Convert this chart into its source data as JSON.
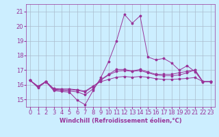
{
  "xlabel": "Windchill (Refroidissement éolien,°C)",
  "x": [
    0,
    1,
    2,
    3,
    4,
    5,
    6,
    7,
    8,
    9,
    10,
    11,
    12,
    13,
    14,
    15,
    16,
    17,
    18,
    19,
    20,
    21,
    22,
    23
  ],
  "line1": [
    16.3,
    15.8,
    16.2,
    15.6,
    15.55,
    15.5,
    14.95,
    14.65,
    15.6,
    16.5,
    17.6,
    19.0,
    20.8,
    20.2,
    20.7,
    17.9,
    17.7,
    17.8,
    17.5,
    17.0,
    17.3,
    16.9,
    16.2,
    16.2
  ],
  "line2": [
    16.3,
    15.85,
    16.25,
    15.65,
    15.62,
    15.58,
    15.52,
    15.32,
    15.72,
    16.35,
    16.72,
    17.05,
    17.05,
    16.95,
    17.05,
    16.88,
    16.72,
    16.72,
    16.72,
    16.82,
    16.92,
    17.02,
    16.22,
    16.22
  ],
  "line3": [
    16.3,
    15.9,
    16.22,
    15.7,
    15.67,
    15.67,
    15.62,
    15.52,
    15.87,
    16.32,
    16.67,
    16.92,
    16.97,
    16.92,
    16.97,
    16.82,
    16.67,
    16.62,
    16.62,
    16.67,
    16.82,
    17.02,
    16.22,
    16.22
  ],
  "line4": [
    16.3,
    15.9,
    16.22,
    15.75,
    15.72,
    15.72,
    15.67,
    15.57,
    15.92,
    16.22,
    16.37,
    16.52,
    16.57,
    16.52,
    16.57,
    16.52,
    16.42,
    16.37,
    16.37,
    16.4,
    16.44,
    16.5,
    16.22,
    16.22
  ],
  "bg_color": "#cceeff",
  "grid_color": "#aabbcc",
  "line_color": "#993399",
  "ylim": [
    14.5,
    21.5
  ],
  "yticks": [
    15,
    16,
    17,
    18,
    19,
    20,
    21
  ],
  "xlim": [
    -0.5,
    23.5
  ],
  "tick_fontsize": 6,
  "xlabel_fontsize": 6
}
